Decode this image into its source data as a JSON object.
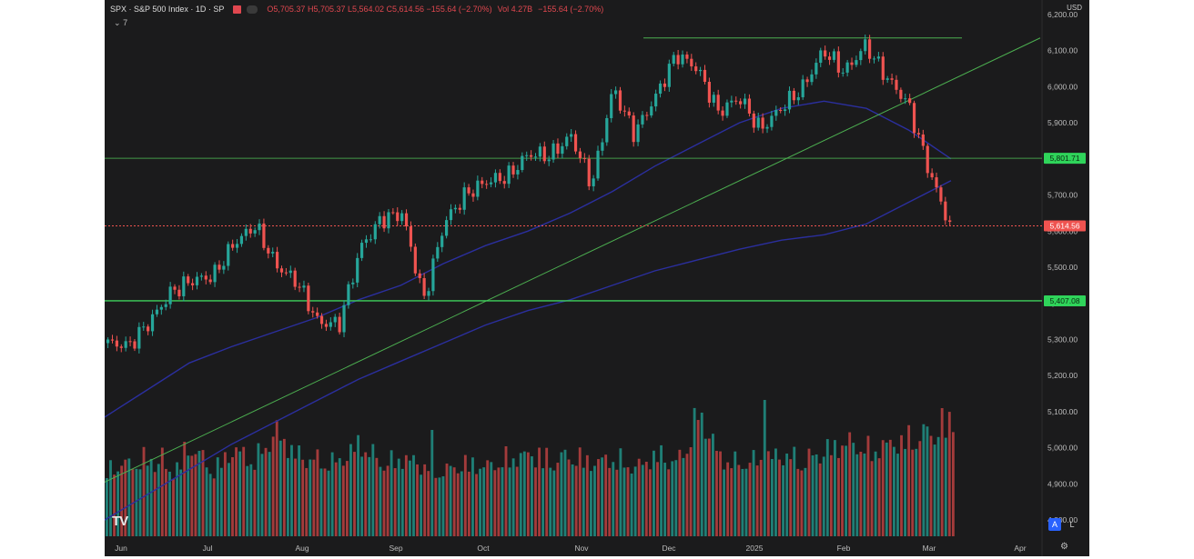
{
  "legend": {
    "symbol": "SPX · S&P 500 Index · 1D · SP",
    "ohlc_text": "O5,705.37 H5,705.37 L5,564.02 C5,614.56 −155.64 (−2.70%)",
    "vol_text": "Vol 4.27B",
    "change_text": "−155.64 (−2.70%)",
    "collapsed_label": "7"
  },
  "currency": "USD",
  "logo": "TV",
  "autoscale_label": "A",
  "log_label": "L",
  "price_tags": {
    "resistance": "5,801.71",
    "current": "5,614.56",
    "support": "5,407.08"
  },
  "colors": {
    "background": "#1b1b1c",
    "up": "#26a69a",
    "down": "#ef5350",
    "vol_up": "#1f7f76",
    "vol_down": "#a33b3b",
    "hline": "#4caf50",
    "trend": "#4caf50",
    "ma": "#2b2f9e",
    "current": "#ef5350"
  },
  "chart_data": {
    "type": "candlestick",
    "x_labels": [
      "Jun",
      "Jul",
      "Aug",
      "Sep",
      "Oct",
      "Nov",
      "Dec",
      "2025",
      "Feb",
      "Mar",
      "Apr"
    ],
    "y_ticks": [
      4800,
      4900,
      5000,
      5100,
      5200,
      5300,
      5400,
      5500,
      5600,
      5700,
      5800,
      5900,
      6000,
      6100,
      6200
    ],
    "y_tick_labels": [
      "4,800.00",
      "4,900.00",
      "5,000.00",
      "5,100.00",
      "5,200.00",
      "5,300.00",
      "5,400.00",
      "5,500.00",
      "5,600.00",
      "5,700.00",
      "5,800.00",
      "5,900.00",
      "6,000.00",
      "6,100.00",
      "6,200.00"
    ],
    "ylim": [
      4750,
      6230
    ],
    "close_series_weekly": [
      5290,
      5283,
      5350,
      5431,
      5464,
      5475,
      5567,
      5615,
      5505,
      5459,
      5346,
      5344,
      5554,
      5634,
      5648,
      5408,
      5626,
      5702,
      5738,
      5751,
      5815,
      5808,
      5864,
      5728,
      5996,
      5870,
      5969,
      6090,
      6051,
      5930,
      5970,
      5881,
      5942,
      5996,
      6101,
      6040,
      6115,
      6025,
      5955,
      5770,
      5614
    ],
    "horizontal_levels": [
      5801.71,
      6135
    ],
    "current_price": 5614.56,
    "support_level": 5407.08,
    "trend_line": {
      "start": [
        0,
        4905
      ],
      "end": [
        41,
        6135
      ]
    },
    "ma_50": [
      5085,
      5160,
      5235,
      5280,
      5320,
      5360,
      5410,
      5450,
      5510,
      5560,
      5600,
      5650,
      5710,
      5780,
      5840,
      5900,
      5940,
      5960,
      5940,
      5880,
      5800
    ],
    "ma_200": [
      4800,
      4870,
      4940,
      5010,
      5070,
      5130,
      5190,
      5240,
      5290,
      5340,
      5380,
      5410,
      5450,
      5490,
      5520,
      5550,
      5575,
      5590,
      5620,
      5680,
      5740
    ],
    "volume_relative": [
      0.52,
      0.55,
      0.6,
      0.48,
      0.7,
      0.5,
      0.66,
      0.58,
      0.8,
      0.62,
      0.58,
      0.57,
      0.72,
      0.55,
      0.6,
      0.54,
      0.5,
      0.56,
      0.53,
      0.6,
      0.62,
      0.58,
      0.62,
      0.56,
      0.6,
      0.52,
      0.63,
      0.56,
      0.95,
      0.6,
      0.55,
      0.6,
      0.62,
      0.58,
      0.66,
      0.72,
      0.66,
      0.7,
      0.75,
      0.8,
      0.92
    ]
  }
}
